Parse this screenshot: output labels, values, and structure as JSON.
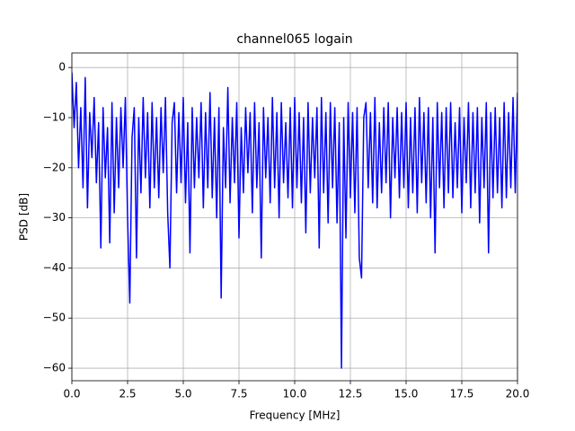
{
  "chart_data": {
    "type": "line",
    "title": "channel065 logain",
    "x_label": "Frequency [MHz]",
    "y_label": "PSD [dB]",
    "x": [
      0,
      0.1,
      0.2,
      0.3,
      0.4,
      0.5,
      0.6,
      0.7,
      0.8,
      0.9,
      1,
      1.1,
      1.2,
      1.3,
      1.4,
      1.5,
      1.6,
      1.7,
      1.8,
      1.9,
      2,
      2.1,
      2.2,
      2.3,
      2.4,
      2.5,
      2.6,
      2.7,
      2.8,
      2.9,
      3,
      3.1,
      3.2,
      3.3,
      3.4,
      3.5,
      3.6,
      3.7,
      3.8,
      3.9,
      4,
      4.1,
      4.2,
      4.3,
      4.4,
      4.5,
      4.6,
      4.7,
      4.8,
      4.9,
      5,
      5.1,
      5.2,
      5.3,
      5.4,
      5.5,
      5.6,
      5.7,
      5.8,
      5.9,
      6,
      6.1,
      6.2,
      6.3,
      6.4,
      6.5,
      6.6,
      6.7,
      6.8,
      6.9,
      7,
      7.1,
      7.2,
      7.3,
      7.4,
      7.5,
      7.6,
      7.7,
      7.8,
      7.9,
      8,
      8.1,
      8.2,
      8.3,
      8.4,
      8.5,
      8.6,
      8.7,
      8.8,
      8.9,
      9,
      9.1,
      9.2,
      9.3,
      9.4,
      9.5,
      9.6,
      9.7,
      9.8,
      9.9,
      10,
      10.1,
      10.2,
      10.3,
      10.4,
      10.5,
      10.6,
      10.7,
      10.8,
      10.9,
      11,
      11.1,
      11.2,
      11.3,
      11.4,
      11.5,
      11.6,
      11.7,
      11.8,
      11.9,
      12,
      12.1,
      12.2,
      12.3,
      12.4,
      12.5,
      12.6,
      12.7,
      12.8,
      12.9,
      13,
      13.1,
      13.2,
      13.3,
      13.4,
      13.5,
      13.6,
      13.7,
      13.8,
      13.9,
      14,
      14.1,
      14.2,
      14.3,
      14.4,
      14.5,
      14.6,
      14.7,
      14.8,
      14.9,
      15,
      15.1,
      15.2,
      15.3,
      15.4,
      15.5,
      15.6,
      15.7,
      15.8,
      15.9,
      16,
      16.1,
      16.2,
      16.3,
      16.4,
      16.5,
      16.6,
      16.7,
      16.8,
      16.9,
      17,
      17.1,
      17.2,
      17.3,
      17.4,
      17.5,
      17.6,
      17.7,
      17.8,
      17.9,
      18,
      18.1,
      18.2,
      18.3,
      18.4,
      18.5,
      18.6,
      18.7,
      18.8,
      18.9,
      19,
      19.1,
      19.2,
      19.3,
      19.4,
      19.5,
      19.6,
      19.7,
      19.8,
      19.9,
      20
    ],
    "values": [
      -1,
      -12,
      -3,
      -20,
      -8,
      -24,
      -2,
      -28,
      -9,
      -18,
      -6,
      -23,
      -11,
      -36,
      -8,
      -22,
      -12,
      -35,
      -7,
      -29,
      -10,
      -24,
      -8,
      -20,
      -6,
      -30,
      -47,
      -14,
      -8,
      -38,
      -10,
      -25,
      -6,
      -22,
      -9,
      -28,
      -7,
      -24,
      -10,
      -26,
      -8,
      -21,
      -6,
      -29,
      -40,
      -11,
      -7,
      -25,
      -9,
      -23,
      -6,
      -27,
      -11,
      -37,
      -8,
      -24,
      -10,
      -22,
      -7,
      -28,
      -9,
      -24,
      -5,
      -26,
      -10,
      -30,
      -8,
      -46,
      -12,
      -24,
      -4,
      -27,
      -10,
      -23,
      -7,
      -34,
      -12,
      -25,
      -8,
      -21,
      -9,
      -29,
      -7,
      -24,
      -11,
      -38,
      -8,
      -22,
      -10,
      -27,
      -6,
      -24,
      -9,
      -30,
      -7,
      -23,
      -11,
      -26,
      -8,
      -28,
      -6,
      -24,
      -9,
      -27,
      -10,
      -33,
      -7,
      -25,
      -10,
      -22,
      -8,
      -36,
      -6,
      -25,
      -9,
      -31,
      -7,
      -24,
      -8,
      -31,
      -11,
      -60,
      -10,
      -34,
      -7,
      -26,
      -9,
      -29,
      -8,
      -38,
      -42,
      -10,
      -7,
      -24,
      -9,
      -27,
      -6,
      -28,
      -11,
      -25,
      -8,
      -23,
      -7,
      -30,
      -10,
      -22,
      -8,
      -26,
      -9,
      -24,
      -7,
      -28,
      -10,
      -25,
      -8,
      -29,
      -6,
      -23,
      -9,
      -27,
      -8,
      -30,
      -10,
      -37,
      -7,
      -24,
      -9,
      -28,
      -8,
      -25,
      -7,
      -26,
      -11,
      -24,
      -8,
      -29,
      -10,
      -23,
      -7,
      -28,
      -9,
      -25,
      -8,
      -31,
      -10,
      -24,
      -7,
      -37,
      -9,
      -26,
      -8,
      -25,
      -10,
      -28,
      -7,
      -26,
      -9,
      -24,
      -6,
      -25,
      -5
    ],
    "color": "#0000ff",
    "xlim": [
      0,
      20
    ],
    "ylim": [
      -62.5,
      2.9
    ],
    "xticks": [
      {
        "value": 0,
        "label": "0.0"
      },
      2.5,
      {
        "value": 5,
        "label": "5.0"
      },
      7.5,
      {
        "value": 10,
        "label": "10.0"
      },
      12.5,
      {
        "value": 15,
        "label": "15.0"
      },
      17.5,
      {
        "value": 20,
        "label": "20.0"
      }
    ],
    "yticks": [
      {
        "value": -60,
        "label": "−60"
      },
      {
        "value": -50,
        "label": "−50"
      },
      {
        "value": -40,
        "label": "−40"
      },
      {
        "value": -30,
        "label": "−30"
      },
      {
        "value": -20,
        "label": "−20"
      },
      {
        "value": -10,
        "label": "−10"
      },
      0
    ],
    "grid": true
  }
}
